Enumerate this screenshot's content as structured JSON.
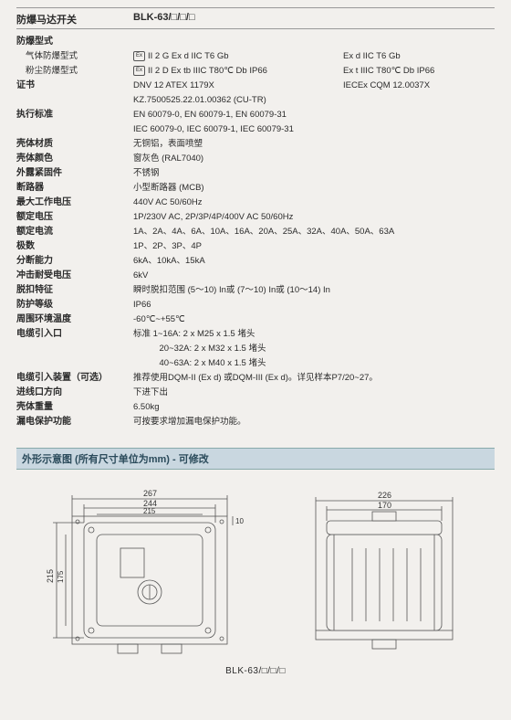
{
  "header": {
    "title": "防爆马达开关",
    "model": "BLK-63/□/□/□"
  },
  "rows": [
    {
      "label": "防爆型式",
      "bold": true
    },
    {
      "label": "气体防爆型式",
      "sub": true,
      "badge": true,
      "v1": "II 2 G Ex d IIC T6 Gb",
      "v2": "Ex d IIC T6 Gb"
    },
    {
      "label": "粉尘防爆型式",
      "sub": true,
      "badge": true,
      "v1": "II 2 D Ex tb IIIC T80℃ Db IP66",
      "v2": "Ex t IIIC T80℃ Db IP66"
    },
    {
      "label": "证书",
      "bold": true,
      "v1": "DNV 12 ATEX 1179X",
      "v2": "IECEx CQM 12.0037X"
    },
    {
      "label": "",
      "v1": "KZ.7500525.22.01.00362 (CU-TR)"
    },
    {
      "label": "执行标准",
      "bold": true,
      "v1": "EN 60079-0, EN 60079-1, EN 60079-31"
    },
    {
      "label": "",
      "v1": "IEC 60079-0, IEC 60079-1, IEC 60079-31"
    },
    {
      "label": "壳体材质",
      "bold": true,
      "vfull": "无铜铝，表面喷塑"
    },
    {
      "label": "壳体颜色",
      "bold": true,
      "vfull": "窗灰色 (RAL7040)"
    },
    {
      "label": "外露紧固件",
      "bold": true,
      "vfull": "不锈钢"
    },
    {
      "label": "断路器",
      "bold": true,
      "vfull": "小型断路器 (MCB)"
    },
    {
      "label": "最大工作电压",
      "bold": true,
      "vfull": "440V AC  50/60Hz"
    },
    {
      "label": "额定电压",
      "bold": true,
      "vfull": "1P/230V AC, 2P/3P/4P/400V AC  50/60Hz"
    },
    {
      "label": "额定电流",
      "bold": true,
      "vfull": "1A、2A、4A、6A、10A、16A、20A、25A、32A、40A、50A、63A"
    },
    {
      "label": "极数",
      "bold": true,
      "vfull": "1P、2P、3P、4P"
    },
    {
      "label": "分断能力",
      "bold": true,
      "vfull": "6kA、10kA、15kA"
    },
    {
      "label": "冲击耐受电压",
      "bold": true,
      "vfull": "6kV"
    },
    {
      "label": "脱扣特征",
      "bold": true,
      "vfull": "瞬时脱扣范围 (5～10) In或 (7～10) In或 (10～14) In"
    },
    {
      "label": "防护等级",
      "bold": true,
      "vfull": "IP66"
    },
    {
      "label": "周围环境温度",
      "bold": true,
      "vfull": "-60℃~+55℃"
    },
    {
      "label": "电缆引入口",
      "bold": true,
      "vfull": "标准 1~16A: 2 x M25 x 1.5 堵头"
    },
    {
      "label": "",
      "vfull": "　　　20~32A: 2 x M32 x 1.5 堵头"
    },
    {
      "label": "",
      "vfull": "　　　40~63A: 2 x M40 x 1.5 堵头"
    },
    {
      "label": "电缆引入装置（可选）",
      "bold": true,
      "vfull": "推荐使用DQM-II (Ex d) 或DQM-III (Ex d)。详见样本P7/20~27。"
    },
    {
      "label": "进线口方向",
      "bold": true,
      "vfull": "下进下出"
    },
    {
      "label": "壳体重量",
      "bold": true,
      "vfull": "6.50kg"
    },
    {
      "label": "漏电保护功能",
      "bold": true,
      "vfull": "可按要求增加漏电保护功能。"
    }
  ],
  "section": {
    "title": "外形示意图 (所有尺寸单位为mm) - 可修改"
  },
  "diagram": {
    "front": {
      "dims": {
        "d267": "267",
        "d244": "244",
        "d215a": "215",
        "d215b": "215",
        "d175": "175",
        "d10": "10"
      },
      "stroke": "#444",
      "bg": "#f2f0ed"
    },
    "side": {
      "dims": {
        "d226": "226",
        "d170": "170"
      },
      "stroke": "#444",
      "bg": "#f2f0ed"
    },
    "model": "BLK-63/□/□/□"
  }
}
